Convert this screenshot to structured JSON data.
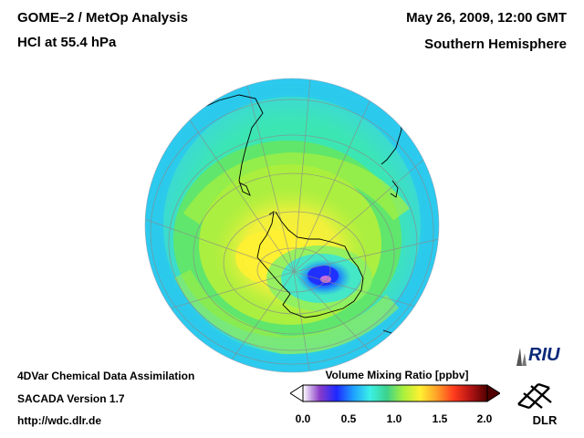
{
  "header": {
    "title_line1": "GOME–2 / MetOp Analysis",
    "title_line2": "HCl at 55.4 hPa",
    "date": "May 26, 2009, 12:00 GMT",
    "hemisphere": "Southern Hemisphere"
  },
  "footer": {
    "line1": "4DVar Chemical Data Assimilation",
    "line2": "SACADA Version 1.7",
    "line3": "http://wdc.dlr.de"
  },
  "colorbar": {
    "title": "Volume Mixing Ratio [ppbv]",
    "min": 0.0,
    "max": 2.0,
    "ticks": [
      "0.0",
      "0.5",
      "1.0",
      "1.5",
      "2.0"
    ],
    "colors": [
      "#ffffff",
      "#8a3cc8",
      "#1e28ff",
      "#1ea0ff",
      "#3cf0e6",
      "#3cd28c",
      "#aaf03c",
      "#fff032",
      "#ffa028",
      "#ff3c1e",
      "#b41414",
      "#500000"
    ]
  },
  "logos": {
    "riu": "RIU",
    "dlr": "DLR"
  }
}
